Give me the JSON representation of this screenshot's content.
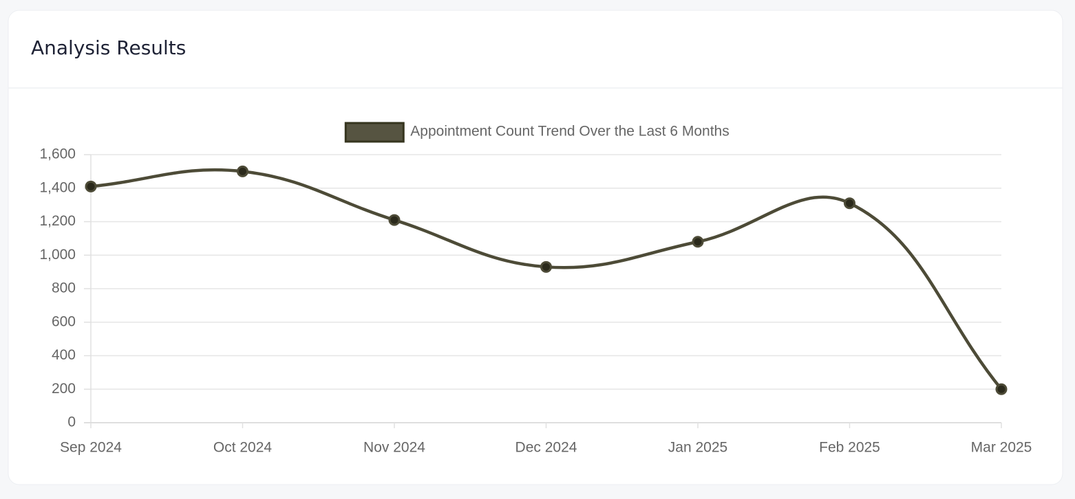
{
  "card": {
    "title": "Analysis Results"
  },
  "chart_data": {
    "type": "line",
    "categories": [
      "Sep 2024",
      "Oct 2024",
      "Nov 2024",
      "Dec 2024",
      "Jan 2025",
      "Feb 2025",
      "Mar 2025"
    ],
    "series": [
      {
        "name": "Appointment Count Trend Over the Last 6 Months",
        "color": "#4d4b37",
        "values": [
          1410,
          1500,
          1210,
          930,
          1080,
          1310,
          200
        ]
      }
    ],
    "ylim": [
      0,
      1600
    ],
    "yticks": [
      0,
      200,
      400,
      600,
      800,
      {
        "value": 1000,
        "label": "1,000"
      },
      {
        "value": 1200,
        "label": "1,200"
      },
      {
        "value": 1400,
        "label": "1,400"
      },
      {
        "value": 1600,
        "label": "1,600"
      }
    ],
    "grid": true,
    "legend": "top",
    "smooth": true
  }
}
